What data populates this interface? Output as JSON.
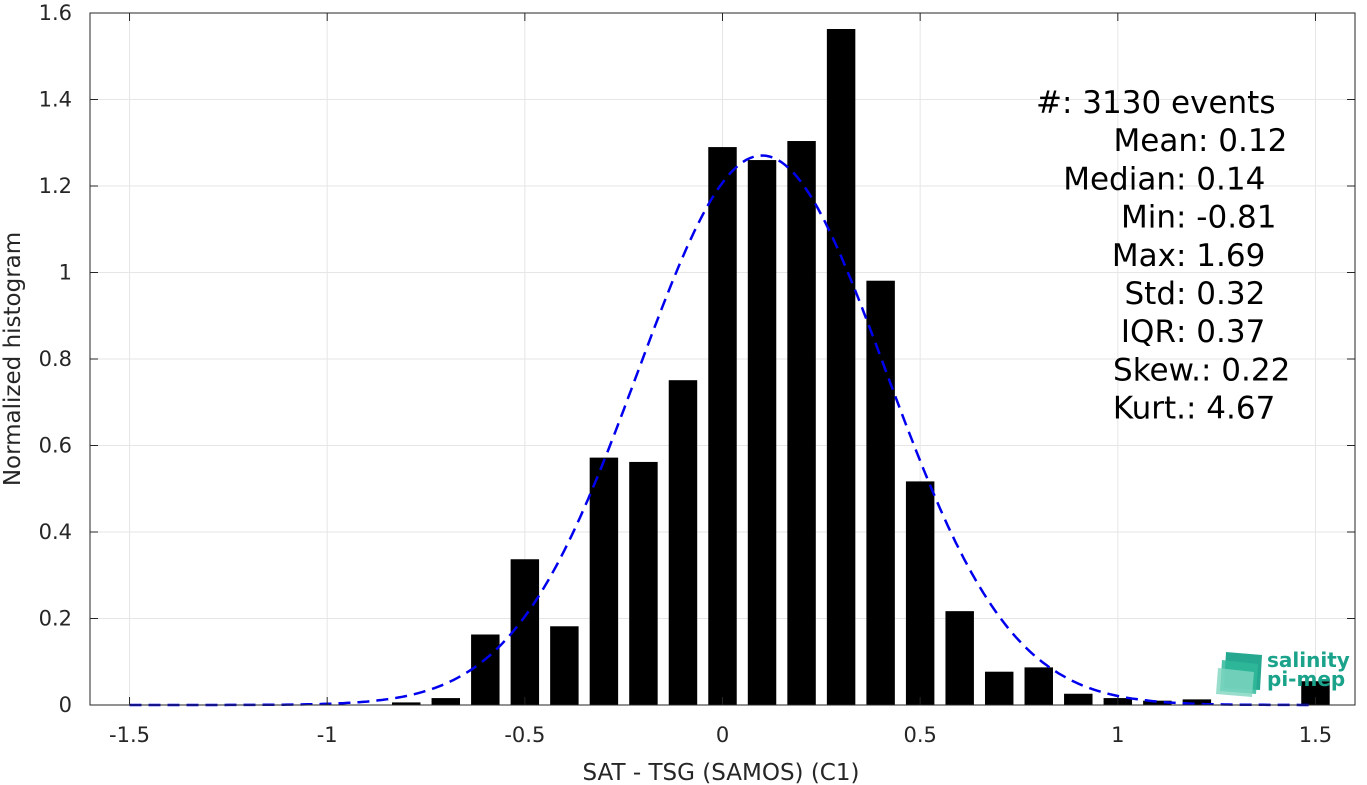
{
  "chart_data": {
    "type": "bar",
    "xlabel": "SAT - TSG (SAMOS) (C1)",
    "ylabel": "Normalized histogram",
    "xlim": [
      -1.6,
      1.6
    ],
    "ylim": [
      0,
      1.6
    ],
    "xticks": [
      -1.5,
      -1,
      -0.5,
      0,
      0.5,
      1,
      1.5
    ],
    "xtick_labels": [
      "-1.5",
      "-1",
      "-0.5",
      "0",
      "0.5",
      "1",
      "1.5"
    ],
    "yticks": [
      0,
      0.2,
      0.4,
      0.6,
      0.8,
      1,
      1.2,
      1.4,
      1.6
    ],
    "ytick_labels": [
      "0",
      "0.2",
      "0.4",
      "0.6",
      "0.8",
      "1",
      "1.2",
      "1.4",
      "1.6"
    ],
    "grid": true,
    "bar_color": "#000000",
    "bin_width": 0.1,
    "bins": [
      {
        "x": -0.8,
        "y": 0.006
      },
      {
        "x": -0.7,
        "y": 0.016
      },
      {
        "x": -0.6,
        "y": 0.163
      },
      {
        "x": -0.5,
        "y": 0.337
      },
      {
        "x": -0.4,
        "y": 0.182
      },
      {
        "x": -0.3,
        "y": 0.572
      },
      {
        "x": -0.2,
        "y": 0.562
      },
      {
        "x": -0.1,
        "y": 0.751
      },
      {
        "x": 0.0,
        "y": 1.29
      },
      {
        "x": 0.1,
        "y": 1.26
      },
      {
        "x": 0.2,
        "y": 1.304
      },
      {
        "x": 0.3,
        "y": 1.563
      },
      {
        "x": 0.4,
        "y": 0.981
      },
      {
        "x": 0.5,
        "y": 0.517
      },
      {
        "x": 0.6,
        "y": 0.217
      },
      {
        "x": 0.7,
        "y": 0.077
      },
      {
        "x": 0.8,
        "y": 0.087
      },
      {
        "x": 0.9,
        "y": 0.026
      },
      {
        "x": 1.0,
        "y": 0.016
      },
      {
        "x": 1.1,
        "y": 0.01
      },
      {
        "x": 1.2,
        "y": 0.013
      },
      {
        "x": 1.5,
        "y": 0.055
      }
    ],
    "fit_curve": {
      "style": "dashed",
      "color": "#0000ee",
      "mean": 0.1,
      "std": 0.314,
      "x_range": [
        -1.5,
        1.5
      ]
    },
    "stats": [
      {
        "label": "#  ",
        "value": ": 3130 events"
      },
      {
        "label": "Mean ",
        "value": ": 0.12"
      },
      {
        "label": "Median ",
        "value": ": 0.14"
      },
      {
        "label": "Min ",
        "value": ": -0.81"
      },
      {
        "label": "Max ",
        "value": ": 1.69"
      },
      {
        "label": "Std ",
        "value": ": 0.32"
      },
      {
        "label": "IQR ",
        "value": ": 0.37"
      },
      {
        "label": "Skew. ",
        "value": ": 0.22"
      },
      {
        "label": "Kurt. ",
        "value": ": 4.67"
      }
    ]
  },
  "logo": {
    "line1": "salinity",
    "line2": "pi-mep",
    "color": "#1aa38a"
  }
}
